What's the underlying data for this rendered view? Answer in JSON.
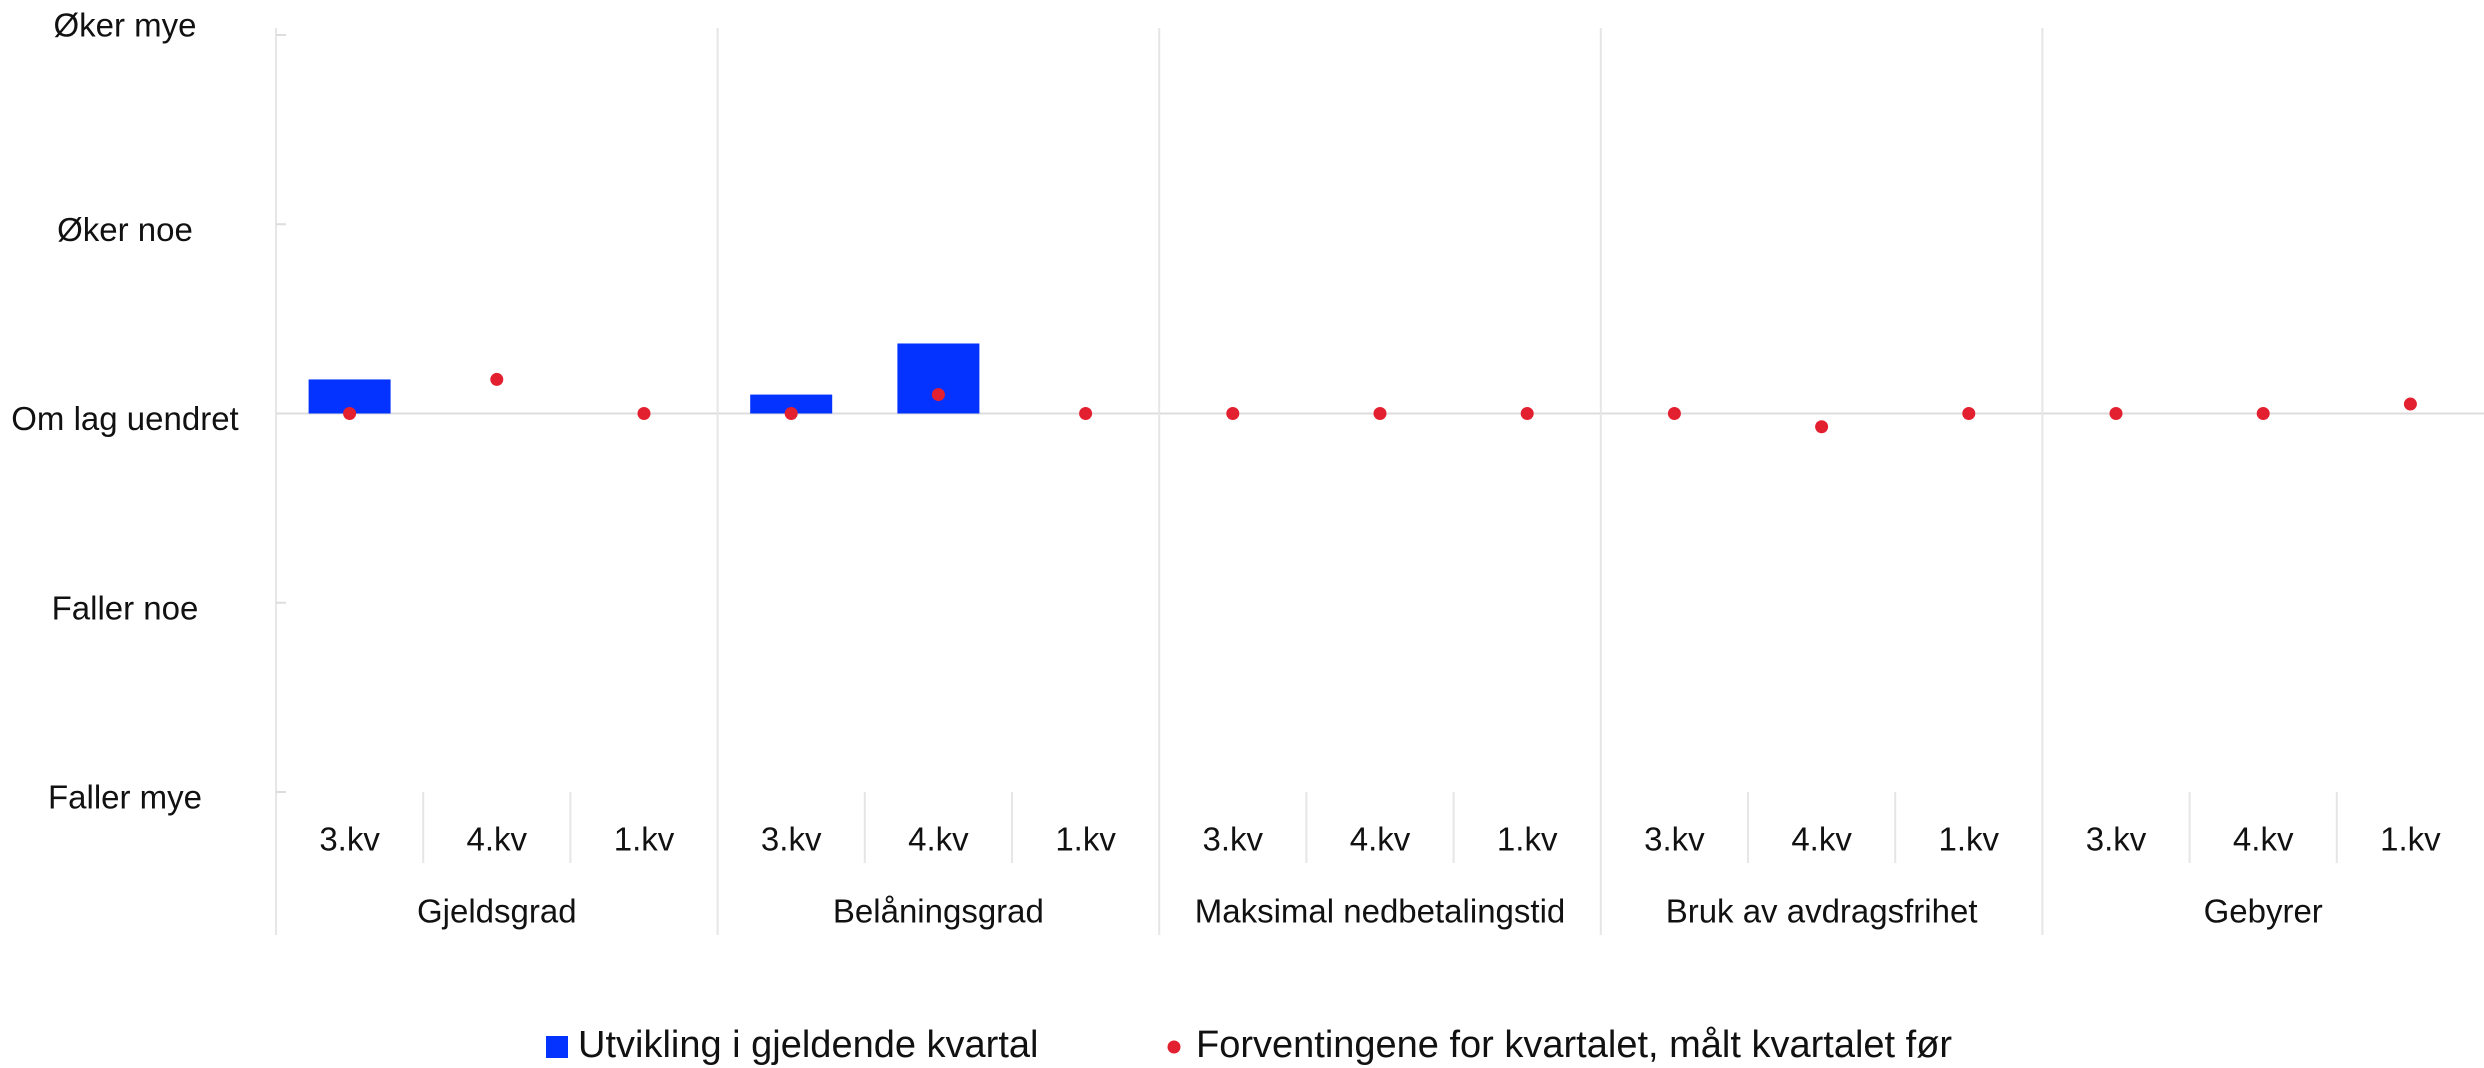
{
  "chart_data": {
    "type": "bar",
    "groups": [
      "Gjeldsgrad",
      "Belåningsgrad",
      "Maksimal nedbetalingstid",
      "Bruk av avdragsfrihet",
      "Gebyrer"
    ],
    "categories": [
      "3.kv",
      "4.kv",
      "1.kv",
      "3.kv",
      "4.kv",
      "1.kv",
      "3.kv",
      "4.kv",
      "1.kv",
      "3.kv",
      "4.kv",
      "1.kv",
      "3.kv",
      "4.kv",
      "1.kv"
    ],
    "series": [
      {
        "name": "Utvikling i gjeldende kvartal",
        "color": "#0433ff",
        "type": "bar",
        "values": [
          0.18,
          0,
          null,
          0.1,
          0.37,
          null,
          0,
          0,
          null,
          0,
          0,
          null,
          0,
          0,
          null
        ]
      },
      {
        "name": "Forventingene for kvartalet, målt kvartalet før",
        "color": "#e3202f",
        "type": "dot",
        "values": [
          0,
          0.18,
          0,
          0,
          0.1,
          0,
          0,
          0,
          0,
          0,
          -0.07,
          0,
          0,
          0,
          0.05
        ]
      }
    ],
    "ylim": [
      -2,
      2
    ],
    "yticks": [
      {
        "value": -2,
        "label": "Faller mye"
      },
      {
        "value": -1,
        "label": "Faller noe"
      },
      {
        "value": 0,
        "label": "Om lag uendret"
      },
      {
        "value": 1,
        "label": "Øker noe"
      },
      {
        "value": 2,
        "label": "Øker mye"
      }
    ]
  }
}
